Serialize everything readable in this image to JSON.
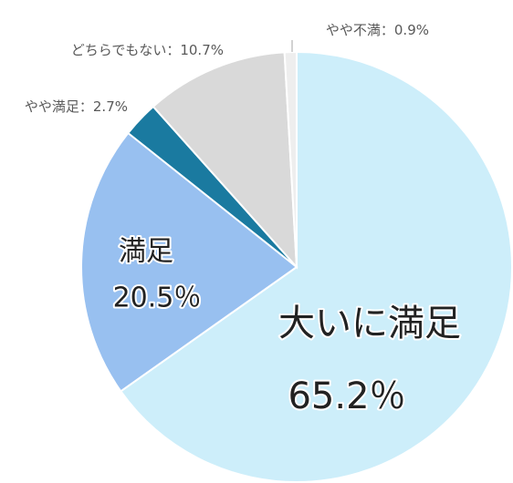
{
  "chart_data": {
    "type": "pie",
    "categories": [
      "大いに満足",
      "満足",
      "やや満足",
      "どちらでもない",
      "やや不満"
    ],
    "values": [
      65.2,
      20.5,
      2.7,
      10.7,
      0.9
    ],
    "value_labels": [
      "65.2％",
      "20.5％",
      "2.7%",
      "10.7%",
      "0.9%"
    ],
    "colors": [
      "#cdeefa",
      "#98c0f0",
      "#1a7aa0",
      "#d9d9d9",
      "#eeeeee"
    ],
    "label_separator": "："
  }
}
